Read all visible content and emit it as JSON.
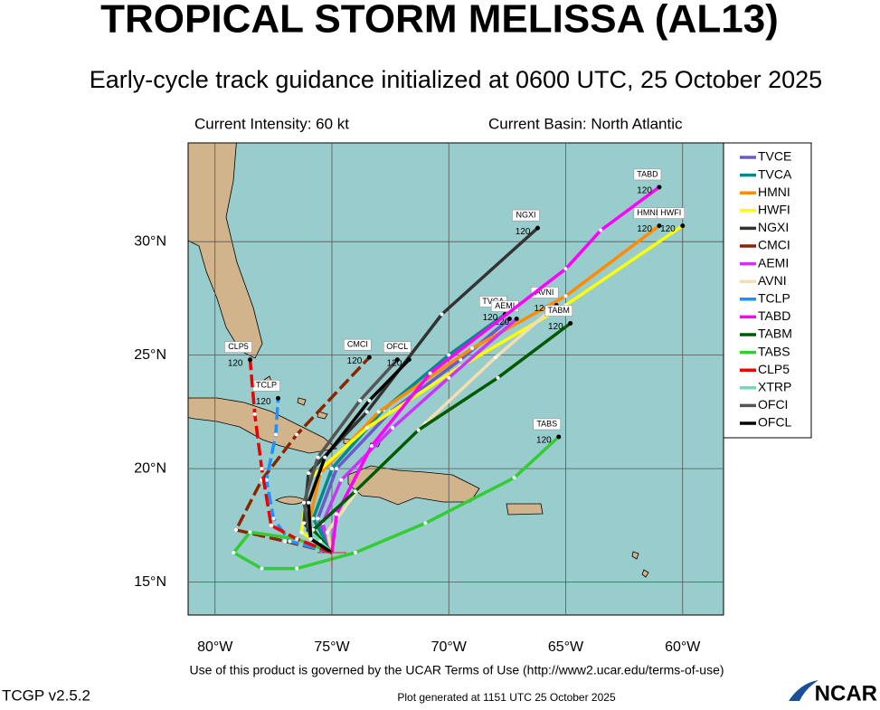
{
  "chart_data": {
    "type": "track",
    "title": "TROPICAL STORM MELISSA (AL13)",
    "subtitle": "Early-cycle track guidance initialized at 0600 UTC, 25 October 2025",
    "intensity": "Current Intensity: 60 kt",
    "basin": "Current Basin: North Atlantic",
    "xlim": [
      -81.15,
      -58.25
    ],
    "ylim": [
      13.55,
      34.35
    ],
    "xticks": [
      {
        "value": -80,
        "label": "80°W"
      },
      {
        "value": -75,
        "label": "75°W"
      },
      {
        "value": -70,
        "label": "70°W"
      },
      {
        "value": -65,
        "label": "65°W"
      },
      {
        "value": -60,
        "label": "60°W"
      }
    ],
    "yticks": [
      {
        "value": 15,
        "label": "15°N"
      },
      {
        "value": 20,
        "label": "20°N"
      },
      {
        "value": 25,
        "label": "25°N"
      },
      {
        "value": 30,
        "label": "30°N"
      }
    ],
    "grid": true,
    "series": [
      {
        "name": "TVCE",
        "color": "#6a5acd",
        "lon": [
          -75,
          -75.6,
          -74.8,
          -72.5,
          -69.5,
          -67.4
        ],
        "lat": [
          16.3,
          17.8,
          20,
          22.5,
          24.8,
          26.6
        ]
      },
      {
        "name": "TVCA",
        "color": "#008b8b",
        "end_label": "TVCA",
        "end_hour": "120",
        "lon": [
          -75,
          -75.8,
          -75,
          -72.8,
          -70,
          -67.6
        ],
        "lat": [
          16.3,
          17.8,
          20,
          22.6,
          25,
          26.8
        ]
      },
      {
        "name": "HMNI",
        "color": "#ff8c00",
        "end_label": "HMNI",
        "end_hour": "120",
        "lon": [
          -75,
          -76,
          -75.5,
          -73,
          -69,
          -65,
          -61
        ],
        "lat": [
          16.3,
          17.5,
          19.8,
          22.5,
          25.3,
          27.6,
          30.7
        ]
      },
      {
        "name": "HWFI",
        "color": "#ffff00",
        "end_label": "HWFI",
        "end_hour": "120",
        "lon": [
          -75,
          -76.3,
          -76,
          -73.5,
          -69.5,
          -65,
          -60
        ],
        "lat": [
          16.3,
          17.2,
          19.5,
          21.8,
          24.5,
          27.2,
          30.7
        ]
      },
      {
        "name": "NGXI",
        "color": "#333333",
        "end_label": "NGXI",
        "end_hour": "120",
        "lon": [
          -75,
          -76.2,
          -76,
          -73.5,
          -70.3,
          -66.2
        ],
        "lat": [
          16.3,
          17.6,
          19.8,
          22.5,
          26.8,
          30.6
        ]
      },
      {
        "name": "CMCI",
        "color": "#8b2500",
        "dashed": true,
        "end_label": "CMCI",
        "end_hour": "120",
        "lon": [
          -75,
          -77,
          -79.1,
          -78,
          -76.5,
          -73.4
        ],
        "lat": [
          16.3,
          16.8,
          17.3,
          19.5,
          21.5,
          24.9
        ]
      },
      {
        "name": "AEMI",
        "color": "#cc33ff",
        "end_label": "AEMI",
        "end_hour": "120",
        "lon": [
          -75,
          -75.4,
          -74.6,
          -72.4,
          -70,
          -67.1
        ],
        "lat": [
          16.3,
          17.6,
          19.5,
          21.8,
          24,
          26.6
        ]
      },
      {
        "name": "AVNI",
        "color": "#f5deb3",
        "end_label": "AVNI",
        "end_hour": "120",
        "lon": [
          -75,
          -75.2,
          -73.8,
          -71,
          -68,
          -65.4
        ],
        "lat": [
          16.3,
          17.2,
          19.2,
          22,
          24.9,
          27.2
        ]
      },
      {
        "name": "TCLP",
        "color": "#1e90ff",
        "dashed": true,
        "end_label": "TCLP",
        "end_hour": "120",
        "lon": [
          -75,
          -76.8,
          -77.5,
          -77.8,
          -77.4,
          -77.3
        ],
        "lat": [
          16.3,
          16.8,
          17.8,
          19.5,
          21.5,
          23.1
        ]
      },
      {
        "name": "TABD",
        "color": "#ff00ff",
        "end_label": "TABD",
        "end_hour": "120",
        "lon": [
          -75,
          -74.8,
          -73.3,
          -70.8,
          -65,
          -63.5,
          -61
        ],
        "lat": [
          16.3,
          18,
          21,
          24.2,
          28.8,
          30.5,
          32.4
        ]
      },
      {
        "name": "TABM",
        "color": "#005a00",
        "end_label": "TABM",
        "end_hour": "120",
        "lon": [
          -75,
          -75.8,
          -74,
          -71.3,
          -67.9,
          -64.8
        ],
        "lat": [
          16.3,
          17.3,
          19,
          21.7,
          24,
          26.4
        ]
      },
      {
        "name": "TABS",
        "color": "#33cc33",
        "end_label": "TABS",
        "end_hour": "120",
        "lon": [
          -75,
          -76.5,
          -78.5,
          -79.2,
          -78,
          -76.5,
          -74,
          -71,
          -67.2,
          -65.3
        ],
        "lat": [
          16.3,
          16.9,
          17.2,
          16.3,
          15.6,
          15.6,
          16.3,
          17.6,
          19.6,
          21.4
        ]
      },
      {
        "name": "CLP5",
        "color": "#ee0000",
        "dashed": true,
        "end_label": "CLP5",
        "end_hour": "120",
        "lon": [
          -75,
          -76.5,
          -77.6,
          -78,
          -78.3,
          -78.5
        ],
        "lat": [
          16.3,
          16.9,
          17.5,
          20,
          22.4,
          24.8
        ]
      },
      {
        "name": "XTRP",
        "color": "#66ddbb",
        "lon": [
          -75,
          -75.5,
          -76
        ],
        "lat": [
          16.3,
          16.8,
          17.3
        ]
      },
      {
        "name": "OFCI",
        "color": "#555555",
        "lon": [
          -75,
          -75.9,
          -76.2,
          -75.6,
          -73.8,
          -72.2
        ],
        "lat": [
          16.3,
          16.9,
          18.5,
          20.5,
          23,
          24.8
        ]
      },
      {
        "name": "OFCL",
        "color": "#000000",
        "end_label": "OFCL",
        "end_hour": "120",
        "lon": [
          -75,
          -75.9,
          -76,
          -75.3,
          -73.4,
          -71.7
        ],
        "lat": [
          16.3,
          16.9,
          18.5,
          20.5,
          23,
          24.8
        ]
      }
    ],
    "terms": "Use of this product is governed by the UCAR Terms of Use (http://www2.ucar.edu/terms-of-use)",
    "version": "TCGP v2.5.2",
    "generated": "Plot generated at 1151 UTC   25 October 2025",
    "logo": "NCAR"
  }
}
